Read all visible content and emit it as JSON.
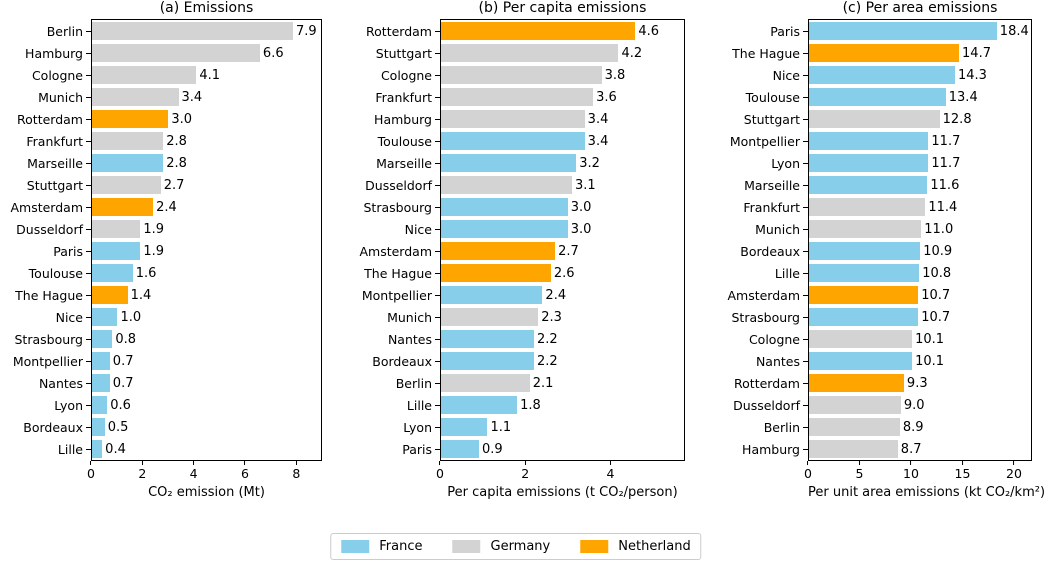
{
  "colors": {
    "France": "#87CEEB",
    "Germany": "#D3D3D3",
    "Netherland": "#FFA500",
    "axis": "#000000",
    "legend_border": "#cccccc"
  },
  "legend": {
    "items": [
      {
        "label": "France",
        "country": "France"
      },
      {
        "label": "Germany",
        "country": "Germany"
      },
      {
        "label": "Netherland",
        "country": "Netherland"
      }
    ]
  },
  "chart_data": [
    {
      "type": "bar",
      "orientation": "horizontal",
      "title": "(a) Emissions",
      "xlabel": "CO₂ emission (Mt)",
      "xlim": [
        0,
        9.0
      ],
      "xticks": [
        0,
        2,
        4,
        6,
        8
      ],
      "grid": false,
      "bars": [
        {
          "city": "Berlin",
          "country": "Germany",
          "value": 7.9
        },
        {
          "city": "Hamburg",
          "country": "Germany",
          "value": 6.6
        },
        {
          "city": "Cologne",
          "country": "Germany",
          "value": 4.1
        },
        {
          "city": "Munich",
          "country": "Germany",
          "value": 3.4
        },
        {
          "city": "Rotterdam",
          "country": "Netherland",
          "value": 3.0
        },
        {
          "city": "Frankfurt",
          "country": "Germany",
          "value": 2.8
        },
        {
          "city": "Marseille",
          "country": "France",
          "value": 2.8
        },
        {
          "city": "Stuttgart",
          "country": "Germany",
          "value": 2.7
        },
        {
          "city": "Amsterdam",
          "country": "Netherland",
          "value": 2.4
        },
        {
          "city": "Dusseldorf",
          "country": "Germany",
          "value": 1.9
        },
        {
          "city": "Paris",
          "country": "France",
          "value": 1.9
        },
        {
          "city": "Toulouse",
          "country": "France",
          "value": 1.6
        },
        {
          "city": "The Hague",
          "country": "Netherland",
          "value": 1.4
        },
        {
          "city": "Nice",
          "country": "France",
          "value": 1.0
        },
        {
          "city": "Strasbourg",
          "country": "France",
          "value": 0.8
        },
        {
          "city": "Montpellier",
          "country": "France",
          "value": 0.7
        },
        {
          "city": "Nantes",
          "country": "France",
          "value": 0.7
        },
        {
          "city": "Lyon",
          "country": "France",
          "value": 0.6
        },
        {
          "city": "Bordeaux",
          "country": "France",
          "value": 0.5
        },
        {
          "city": "Lille",
          "country": "France",
          "value": 0.4
        }
      ]
    },
    {
      "type": "bar",
      "orientation": "horizontal",
      "title": "(b) Per capita emissions",
      "xlabel": "Per capita emissions (t CO₂/person)",
      "xlim": [
        0,
        5.75
      ],
      "xticks": [
        0,
        2,
        4
      ],
      "grid": false,
      "bars": [
        {
          "city": "Rotterdam",
          "country": "Netherland",
          "value": 4.6
        },
        {
          "city": "Stuttgart",
          "country": "Germany",
          "value": 4.2
        },
        {
          "city": "Cologne",
          "country": "Germany",
          "value": 3.8
        },
        {
          "city": "Frankfurt",
          "country": "Germany",
          "value": 3.6
        },
        {
          "city": "Hamburg",
          "country": "Germany",
          "value": 3.4
        },
        {
          "city": "Toulouse",
          "country": "France",
          "value": 3.4
        },
        {
          "city": "Marseille",
          "country": "France",
          "value": 3.2
        },
        {
          "city": "Dusseldorf",
          "country": "Germany",
          "value": 3.1
        },
        {
          "city": "Strasbourg",
          "country": "France",
          "value": 3.0
        },
        {
          "city": "Nice",
          "country": "France",
          "value": 3.0
        },
        {
          "city": "Amsterdam",
          "country": "Netherland",
          "value": 2.7
        },
        {
          "city": "The Hague",
          "country": "Netherland",
          "value": 2.6
        },
        {
          "city": "Montpellier",
          "country": "France",
          "value": 2.4
        },
        {
          "city": "Munich",
          "country": "Germany",
          "value": 2.3
        },
        {
          "city": "Nantes",
          "country": "France",
          "value": 2.2
        },
        {
          "city": "Bordeaux",
          "country": "France",
          "value": 2.2
        },
        {
          "city": "Berlin",
          "country": "Germany",
          "value": 2.1
        },
        {
          "city": "Lille",
          "country": "France",
          "value": 1.8
        },
        {
          "city": "Lyon",
          "country": "France",
          "value": 1.1
        },
        {
          "city": "Paris",
          "country": "France",
          "value": 0.9
        }
      ]
    },
    {
      "type": "bar",
      "orientation": "horizontal",
      "title": "(c) Per area emissions",
      "xlabel": "Per unit area emissions (kt CO₂/km²)",
      "xlim": [
        0,
        21.75
      ],
      "xticks": [
        0,
        5,
        10,
        15,
        20
      ],
      "grid": false,
      "bars": [
        {
          "city": "Paris",
          "country": "France",
          "value": 18.4
        },
        {
          "city": "The Hague",
          "country": "Netherland",
          "value": 14.7
        },
        {
          "city": "Nice",
          "country": "France",
          "value": 14.3
        },
        {
          "city": "Toulouse",
          "country": "France",
          "value": 13.4
        },
        {
          "city": "Stuttgart",
          "country": "Germany",
          "value": 12.8
        },
        {
          "city": "Montpellier",
          "country": "France",
          "value": 11.7
        },
        {
          "city": "Lyon",
          "country": "France",
          "value": 11.7
        },
        {
          "city": "Marseille",
          "country": "France",
          "value": 11.6
        },
        {
          "city": "Frankfurt",
          "country": "Germany",
          "value": 11.4
        },
        {
          "city": "Munich",
          "country": "Germany",
          "value": 11.0
        },
        {
          "city": "Bordeaux",
          "country": "France",
          "value": 10.9
        },
        {
          "city": "Lille",
          "country": "France",
          "value": 10.8
        },
        {
          "city": "Amsterdam",
          "country": "Netherland",
          "value": 10.7
        },
        {
          "city": "Strasbourg",
          "country": "France",
          "value": 10.7
        },
        {
          "city": "Cologne",
          "country": "Germany",
          "value": 10.1
        },
        {
          "city": "Nantes",
          "country": "France",
          "value": 10.1
        },
        {
          "city": "Rotterdam",
          "country": "Netherland",
          "value": 9.3
        },
        {
          "city": "Dusseldorf",
          "country": "Germany",
          "value": 9.0
        },
        {
          "city": "Berlin",
          "country": "Germany",
          "value": 8.9
        },
        {
          "city": "Hamburg",
          "country": "Germany",
          "value": 8.7
        }
      ]
    }
  ]
}
